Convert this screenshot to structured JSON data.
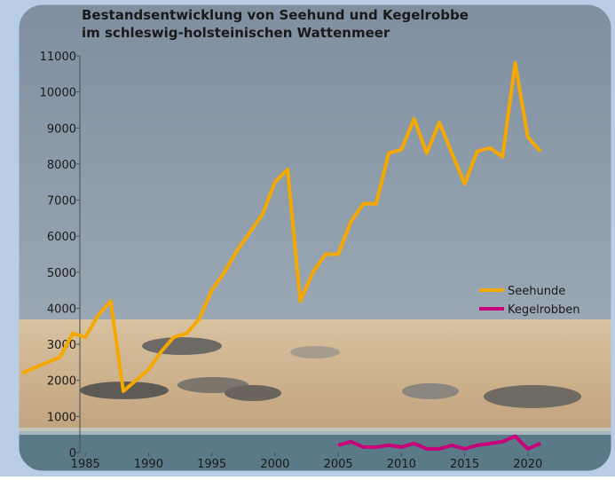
{
  "chart_data": {
    "type": "line",
    "title": [
      "Bestandsentwicklung von Seehund und Kegelrobbe",
      "im schleswig-holsteinischen Wattenmeer"
    ],
    "xlim": [
      1980,
      2025
    ],
    "xticks": [
      1985,
      1990,
      1995,
      2000,
      2005,
      2010,
      2015,
      2020
    ],
    "ylim": [
      0,
      11000
    ],
    "yticks": [
      0,
      1000,
      2000,
      3000,
      4000,
      5000,
      6000,
      7000,
      8000,
      9000,
      10000,
      11000
    ],
    "legend": "right",
    "series": [
      {
        "name": "Seehunde",
        "color": "#f5a800",
        "x": [
          1980,
          1981,
          1982,
          1983,
          1984,
          1985,
          1986,
          1987,
          1988,
          1989,
          1990,
          1991,
          1992,
          1993,
          1994,
          1995,
          1996,
          1997,
          1998,
          1999,
          2000,
          2001,
          2002,
          2003,
          2004,
          2005,
          2006,
          2007,
          2008,
          2009,
          2010,
          2011,
          2012,
          2013,
          2014,
          2015,
          2016,
          2017,
          2018,
          2019,
          2020,
          2021
        ],
        "values": [
          2200,
          2350,
          2500,
          2650,
          3300,
          3200,
          3800,
          4200,
          1700,
          2000,
          2300,
          2800,
          3200,
          3300,
          3700,
          4500,
          5000,
          5600,
          6100,
          6600,
          7500,
          7850,
          4200,
          5000,
          5500,
          5500,
          6400,
          6900,
          6900,
          8300,
          8400,
          9250,
          8300,
          9150,
          8300,
          7450,
          8350,
          8450,
          8200,
          10800,
          8750,
          8350
        ]
      },
      {
        "name": "Kegelrobben",
        "color": "#c8007a",
        "x": [
          2005,
          2006,
          2007,
          2008,
          2009,
          2010,
          2011,
          2012,
          2013,
          2014,
          2015,
          2016,
          2017,
          2018,
          2019,
          2020,
          2021
        ],
        "values": [
          200,
          300,
          150,
          150,
          200,
          150,
          250,
          100,
          100,
          200,
          100,
          200,
          250,
          300,
          450,
          100,
          250
        ]
      }
    ]
  }
}
